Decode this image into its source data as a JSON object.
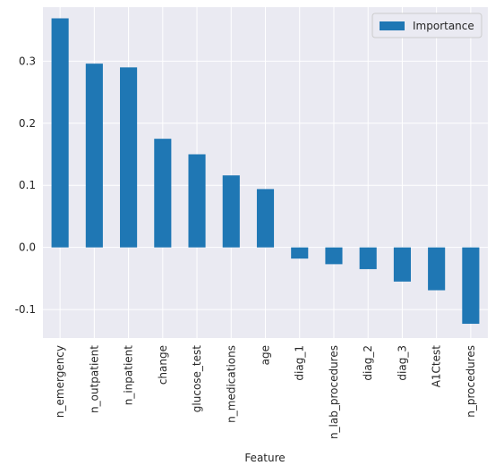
{
  "chart_data": {
    "type": "bar",
    "categories": [
      "n_emergency",
      "n_outpatient",
      "n_inpatient",
      "change",
      "glucose_test",
      "n_medications",
      "age",
      "diag_1",
      "n_lab_procedures",
      "diag_2",
      "diag_3",
      "A1Ctest",
      "n_procedures"
    ],
    "series": [
      {
        "name": "Importance",
        "values": [
          0.369,
          0.296,
          0.29,
          0.175,
          0.15,
          0.116,
          0.094,
          -0.018,
          -0.027,
          -0.035,
          -0.055,
          -0.069,
          -0.123
        ]
      }
    ],
    "title": "",
    "xlabel": "Feature",
    "ylabel": "",
    "ylim": [
      -0.146,
      0.387
    ],
    "yticks": [
      -0.1,
      0.0,
      0.1,
      0.2,
      0.3
    ],
    "ytick_labels": [
      "-0.1",
      "0.0",
      "0.1",
      "0.2",
      "0.3"
    ],
    "grid": true,
    "legend_position": "top-right"
  },
  "colors": {
    "background": "#eaeaf2",
    "grid": "#ffffff",
    "bar": "#1f77b4",
    "text": "#262626"
  }
}
